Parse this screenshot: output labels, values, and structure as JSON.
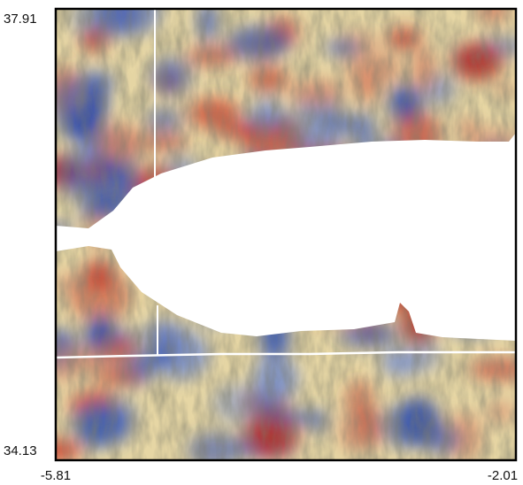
{
  "map": {
    "lat_labels": [
      "37.91",
      "34.13"
    ],
    "lon_labels": [
      "-5.81",
      "-2.01"
    ]
  }
}
